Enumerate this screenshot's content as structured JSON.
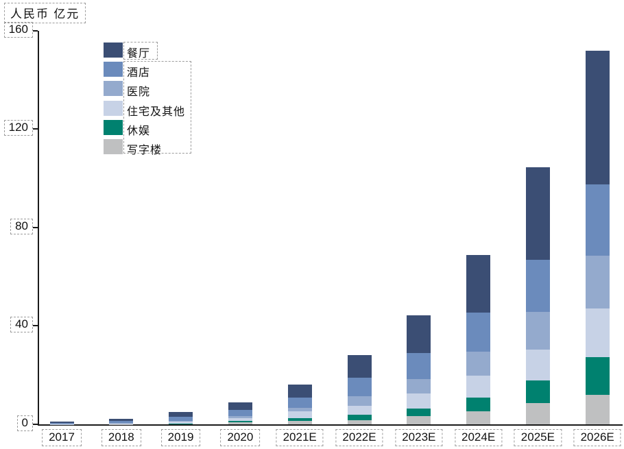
{
  "chart_data": {
    "type": "bar",
    "stacked": true,
    "ylabel": "人民币 亿元",
    "units": "亿元",
    "grid": false,
    "legend_position": "upper-left-inside",
    "ylim": [
      0,
      160
    ],
    "yticks": [
      0,
      40,
      80,
      120,
      160
    ],
    "categories": [
      "2017",
      "2018",
      "2019",
      "2020",
      "2021E",
      "2022E",
      "2023E",
      "2024E",
      "2025E",
      "2026E"
    ],
    "series": [
      {
        "name": "餐厅",
        "color": "#3b4e74",
        "values": [
          0.5,
          0.8,
          1.9,
          3.1,
          5.3,
          9.2,
          15.3,
          23.6,
          37.5,
          54.1
        ]
      },
      {
        "name": "酒店",
        "color": "#6b8bbc",
        "values": [
          0.3,
          0.8,
          1.6,
          2.5,
          4.1,
          7.5,
          10.6,
          15.9,
          21.3,
          29.1
        ]
      },
      {
        "name": "医院",
        "color": "#94aacd",
        "values": [
          0.1,
          0.2,
          0.5,
          0.8,
          1.4,
          3.9,
          5.8,
          9.7,
          15.3,
          21.4
        ]
      },
      {
        "name": "住宅及其他",
        "color": "#c7d2e6",
        "values": [
          0.1,
          0.2,
          0.6,
          1.1,
          2.8,
          3.6,
          6.1,
          8.9,
          12.5,
          19.9
        ]
      },
      {
        "name": "休娱",
        "color": "#00816f",
        "values": [
          0.0,
          0.1,
          0.2,
          0.6,
          1.1,
          2.2,
          3.1,
          5.5,
          9.2,
          15.3
        ]
      },
      {
        "name": "写字楼",
        "color": "#bfc0c1",
        "values": [
          0.0,
          0.1,
          0.2,
          0.8,
          1.4,
          1.7,
          3.3,
          5.3,
          8.6,
          11.9
        ]
      }
    ],
    "stack_note": "series listed top-of-stack first (legend order); totals per category: 1.0, 2.2, 5.0, 8.9, 16.1, 28.1, 44.2, 68.9, 104.4, 151.7",
    "axis_color": "#1a1a1a",
    "annotation_box_color": "#9c9c9c"
  }
}
